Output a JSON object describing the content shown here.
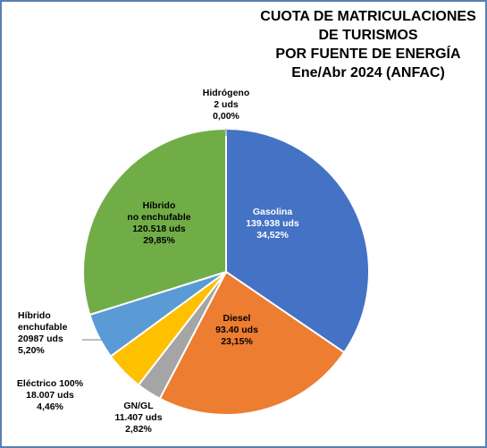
{
  "title_lines": [
    "CUOTA DE MATRICULACIONES",
    "DE TURISMOS",
    "POR FUENTE DE ENERGÍA",
    "Ene/Abr 2024 (ANFAC)"
  ],
  "chart_data": {
    "type": "pie",
    "title": "CUOTA DE MATRICULACIONES DE TURISMOS POR FUENTE DE ENERGÍA Ene/Abr 2024 (ANFAC)",
    "slices": [
      {
        "name": "Gasolina",
        "units": "139.938 uds",
        "pct": "34,52%",
        "value": 34.52,
        "color": "#4472c4",
        "label_color": "#ffffff",
        "label_lines": [
          "Gasolina",
          "139.938 uds",
          "34,52%"
        ]
      },
      {
        "name": "Diesel",
        "units": "93.40 uds",
        "pct": "23,15%",
        "value": 23.15,
        "color": "#ed7d31",
        "label_color": "#000000",
        "label_lines": [
          "Diesel",
          "93.40 uds",
          "23,15%"
        ]
      },
      {
        "name": "GN/GL",
        "units": "11.407 uds",
        "pct": "2,82%",
        "value": 2.82,
        "color": "#a5a5a5",
        "label_color": "#000000",
        "label_lines": [
          "GN/GL",
          "11.407 uds",
          "2,82%"
        ]
      },
      {
        "name": "Eléctrico 100%",
        "units": "18.007 uds",
        "pct": "4,46%",
        "value": 4.46,
        "color": "#ffc000",
        "label_color": "#000000",
        "label_lines": [
          "Eléctrico 100%",
          "18.007 uds",
          "4,46%"
        ]
      },
      {
        "name": "Híbrido enchufable",
        "units": "20987 uds",
        "pct": "5,20%",
        "value": 5.2,
        "color": "#5b9bd5",
        "label_color": "#000000",
        "label_lines": [
          "Híbrido",
          "enchufable",
          "20987 uds",
          "5,20%"
        ]
      },
      {
        "name": "Híbrido no enchufable",
        "units": "120.518 uds",
        "pct": "29,85%",
        "value": 29.85,
        "color": "#70ad47",
        "label_color": "#000000",
        "label_lines": [
          "Híbrido",
          "no enchufable",
          "120.518 uds",
          "29,85%"
        ]
      },
      {
        "name": "Hidrógeno",
        "units": "2 uds",
        "pct": "0,00%",
        "value": 0.0,
        "color": "#264478",
        "label_color": "#000000",
        "label_lines": [
          "Hidrógeno",
          "2 uds",
          "0,00%"
        ]
      }
    ]
  }
}
